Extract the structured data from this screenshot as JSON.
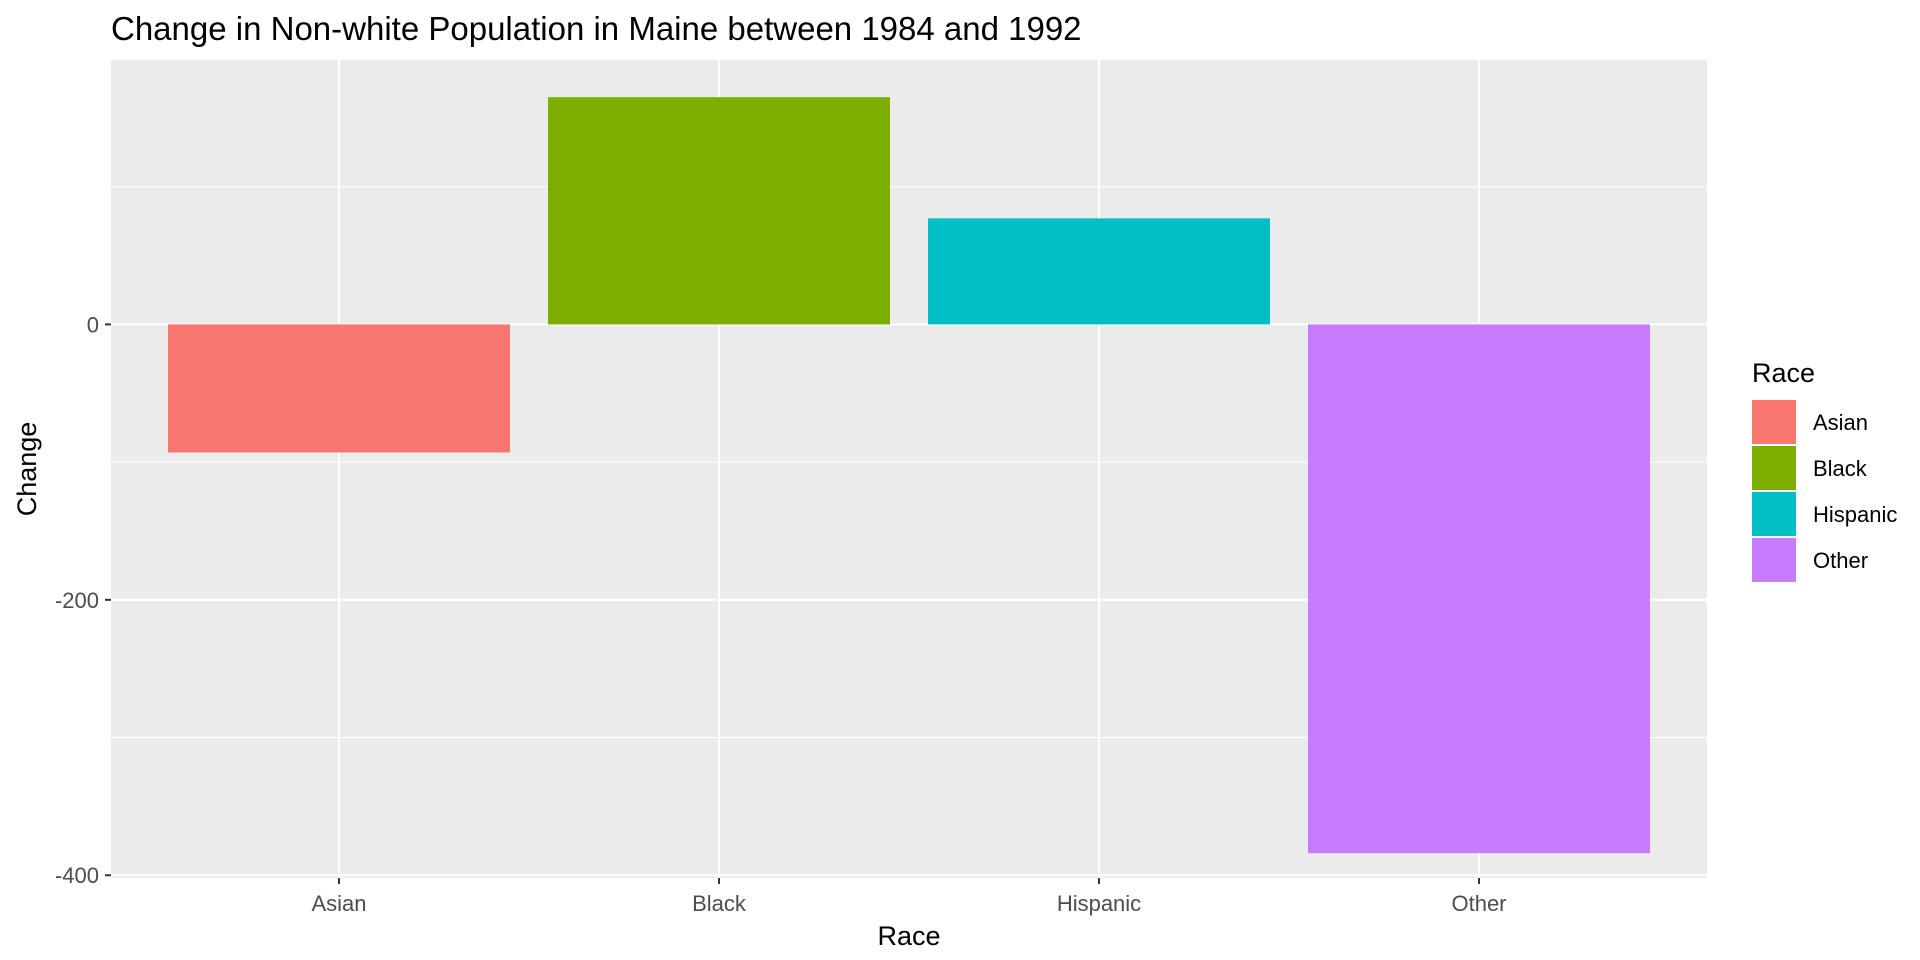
{
  "chart_data": {
    "type": "bar",
    "title": "Change in Non-white Population in Maine between 1984 and 1992",
    "xlabel": "Race",
    "ylabel": "Change",
    "categories": [
      "Asian",
      "Black",
      "Hispanic",
      "Other"
    ],
    "values": [
      -93,
      165,
      77,
      -384
    ],
    "colors": [
      "#F8766D",
      "#7CAE00",
      "#00BFC4",
      "#C77CFF"
    ],
    "ylim": [
      -402,
      192
    ],
    "yticks": [
      0,
      -200,
      -400
    ],
    "ytick_labels": [
      "0",
      "-200",
      "-400"
    ],
    "grid": true,
    "panel_background": "#EBEBEB",
    "legend": {
      "title": "Race",
      "position": "right",
      "entries": [
        "Asian",
        "Black",
        "Hispanic",
        "Other"
      ]
    }
  }
}
